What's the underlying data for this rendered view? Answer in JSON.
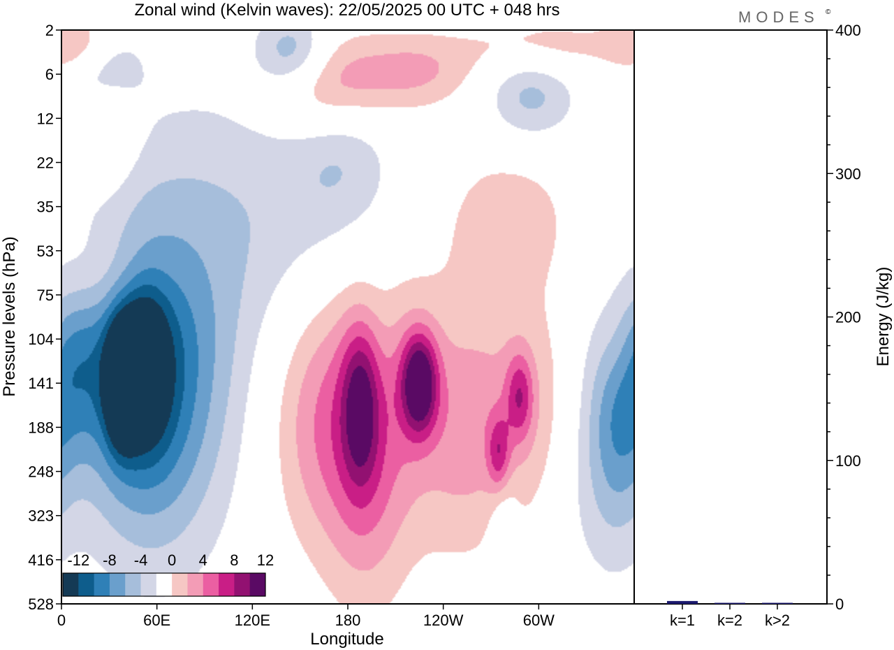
{
  "title": "Zonal wind (Kelvin waves):  22/05/2025  00 UTC  + 048 hrs",
  "brand": "MODES",
  "brand_mark": "©",
  "colors": {
    "neg": [
      "#143a55",
      "#0e5d8c",
      "#2f80b7",
      "#6a9fcc",
      "#a6bedb",
      "#d3d6e6"
    ],
    "zero": "#ffffff",
    "pos": [
      "#f6c7c4",
      "#f39cb6",
      "#eb5fa2",
      "#c91e86",
      "#921171",
      "#5a0a64"
    ],
    "axis": "#000000",
    "bar": "#1c1a6e"
  },
  "chart_data": [
    {
      "type": "heatmap",
      "title": "Zonal wind (Kelvin waves):  22/05/2025  00 UTC  + 048 hrs",
      "xlabel": "Longitude",
      "ylabel": "Pressure levels (hPa)",
      "x_ticks": [
        "0",
        "60E",
        "120E",
        "180",
        "120W",
        "60W"
      ],
      "y_ticks": [
        "2",
        "6",
        "12",
        "22",
        "35",
        "53",
        "75",
        "104",
        "141",
        "188",
        "248",
        "323",
        "416",
        "528"
      ],
      "legend": {
        "labels": [
          "-12",
          "-8",
          "-4",
          "0",
          "4",
          "8",
          "12"
        ],
        "levels": [
          -14,
          -12,
          -10,
          -8,
          -6,
          -4,
          -2,
          2,
          4,
          6,
          8,
          10,
          12,
          14
        ]
      },
      "features": [
        {
          "lon": 38,
          "level": 8.0,
          "value": -13.5,
          "dlon": 7,
          "dlev": 0.9
        },
        {
          "lon": 52,
          "level": 7.6,
          "value": -9,
          "dlon": 10,
          "dlev": 1.1
        },
        {
          "lon": 44,
          "level": 7.8,
          "value": -7,
          "dlon": 25,
          "dlev": 2.2
        },
        {
          "lon": 55,
          "level": 7.3,
          "value": -3,
          "dlon": 45,
          "dlev": 3.4
        },
        {
          "lon": 65,
          "level": 8.8,
          "value": -2.5,
          "dlon": 25,
          "dlev": 2.5
        },
        {
          "lon": 8,
          "level": 7.5,
          "value": -4,
          "dlon": 14,
          "dlev": 1.4
        },
        {
          "lon": 85,
          "level": 6.2,
          "value": -2.5,
          "dlon": 30,
          "dlev": 3.0
        },
        {
          "lon": 150,
          "level": 4.0,
          "value": -3,
          "dlon": 40,
          "dlev": 2.0
        },
        {
          "lon": 178,
          "level": 2.8,
          "value": -2.5,
          "dlon": 20,
          "dlev": 1.2
        },
        {
          "lon": 28,
          "level": 0.8,
          "value": -4.5,
          "dlon": 16,
          "dlev": 0.7
        },
        {
          "lon": 145,
          "level": 0.5,
          "value": -6,
          "dlon": 16,
          "dlev": 0.6
        },
        {
          "lon": 295,
          "level": 1.4,
          "value": -5,
          "dlon": 20,
          "dlev": 0.8
        },
        {
          "lon": 350,
          "level": 8.5,
          "value": -6,
          "dlon": 13,
          "dlev": 2.0
        },
        {
          "lon": 330,
          "level": 9.5,
          "value": -3,
          "dlon": 18,
          "dlev": 2.0
        },
        {
          "lon": 278,
          "level": 11.5,
          "value": -2.5,
          "dlon": 6,
          "dlev": 1.2
        },
        {
          "lon": 10,
          "level": 0.3,
          "value": 5,
          "dlon": 18,
          "dlev": 0.5
        },
        {
          "lon": 170,
          "level": 1.2,
          "value": 6,
          "dlon": 28,
          "dlev": 0.8
        },
        {
          "lon": 225,
          "level": 0.9,
          "value": 4,
          "dlon": 25,
          "dlev": 0.6
        },
        {
          "lon": 300,
          "level": 0.4,
          "value": 4,
          "dlon": 30,
          "dlev": 0.5
        },
        {
          "lon": 30,
          "level": 2.2,
          "value": 3,
          "dlon": 12,
          "dlev": 1.0
        },
        {
          "lon": 25,
          "level": 5.6,
          "value": 3,
          "dlon": 30,
          "dlev": 0.9
        },
        {
          "lon": 282,
          "level": 4.2,
          "value": 3,
          "dlon": 30,
          "dlev": 1.2
        },
        {
          "lon": 195,
          "level": 8.4,
          "value": 5,
          "dlon": 35,
          "dlev": 2.3
        },
        {
          "lon": 225,
          "level": 8.0,
          "value": 12,
          "dlon": 8,
          "dlev": 0.8
        },
        {
          "lon": 188,
          "level": 8.5,
          "value": 7,
          "dlon": 8,
          "dlev": 1.2
        },
        {
          "lon": 192,
          "level": 10.3,
          "value": 3.5,
          "dlon": 18,
          "dlev": 2.3
        },
        {
          "lon": 160,
          "level": 9.0,
          "value": 3,
          "dlon": 22,
          "dlev": 2.0
        },
        {
          "lon": 252,
          "level": 9.2,
          "value": 3,
          "dlon": 20,
          "dlev": 2.0
        },
        {
          "lon": 295,
          "level": 8.6,
          "value": 4,
          "dlon": 28,
          "dlev": 1.9
        },
        {
          "lon": 288,
          "level": 8.3,
          "value": 6,
          "dlon": 6,
          "dlev": 0.7
        },
        {
          "lon": 275,
          "level": 9.6,
          "value": 6,
          "dlon": 5,
          "dlev": 0.6
        },
        {
          "lon": 350,
          "level": 7.2,
          "value": 3,
          "dlon": 10,
          "dlev": 1.0
        },
        {
          "lon": 200,
          "level": 7.0,
          "value": -0.8,
          "dlon": 9,
          "dlev": 1.8
        }
      ]
    },
    {
      "type": "bar",
      "ylabel": "Energy (J/kg)",
      "categories": [
        "k=1",
        "k=2",
        "k>2"
      ],
      "values": [
        2,
        0.4,
        0.6
      ],
      "ylim": [
        0,
        400
      ],
      "y_ticks": [
        "0",
        "100",
        "200",
        "300",
        "400"
      ]
    }
  ]
}
